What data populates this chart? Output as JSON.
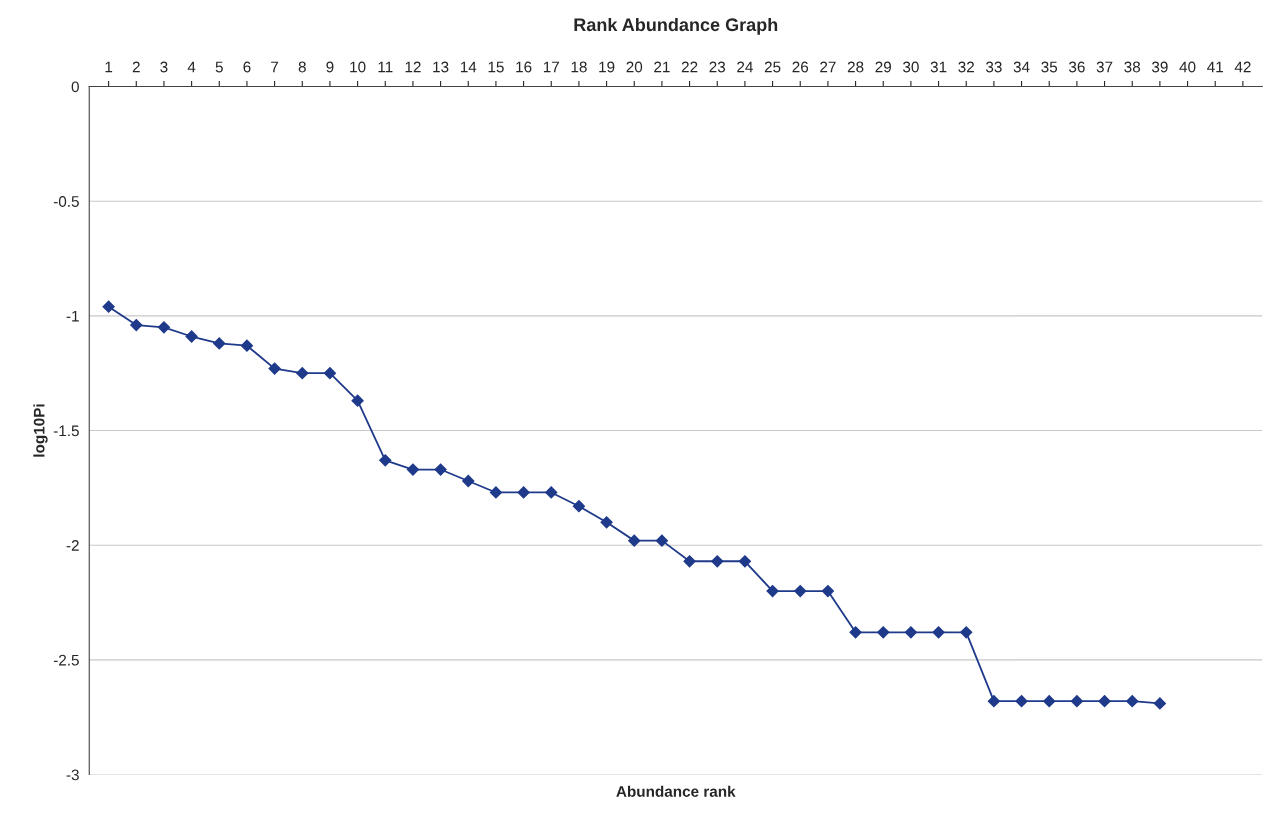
{
  "chart_data": {
    "type": "line",
    "title": "Rank Abundance Graph",
    "xlabel": "Abundance rank",
    "ylabel": "log10Pi",
    "categories": [
      "1",
      "2",
      "3",
      "4",
      "5",
      "6",
      "7",
      "8",
      "9",
      "10",
      "11",
      "12",
      "13",
      "14",
      "15",
      "16",
      "17",
      "18",
      "19",
      "20",
      "21",
      "22",
      "23",
      "24",
      "25",
      "26",
      "27",
      "28",
      "29",
      "30",
      "31",
      "32",
      "33",
      "34",
      "35",
      "36",
      "37",
      "38",
      "39",
      "40",
      "41",
      "42"
    ],
    "series": [
      {
        "color": "#1f3a8a",
        "values": [
          -0.96,
          -1.04,
          -1.05,
          -1.09,
          -1.12,
          -1.13,
          -1.23,
          -1.25,
          -1.25,
          -1.37,
          -1.63,
          -1.67,
          -1.67,
          -1.72,
          -1.77,
          -1.77,
          -1.77,
          -1.83,
          -1.9,
          -1.98,
          -1.98,
          -2.07,
          -2.07,
          -2.07,
          -2.2,
          -2.2,
          -2.2,
          -2.38,
          -2.38,
          -2.38,
          -2.38,
          -2.38,
          -2.68,
          -2.68,
          -2.68,
          -2.68,
          -2.68,
          -2.68,
          -2.69,
          null,
          null,
          null
        ]
      }
    ],
    "ylim": [
      -3,
      0
    ],
    "yticks": [
      -3,
      -2.5,
      -2,
      -1.5,
      -1,
      -0.5,
      0
    ],
    "grid": "y",
    "marker": "diamond",
    "line_style": "solid",
    "legend": false
  }
}
